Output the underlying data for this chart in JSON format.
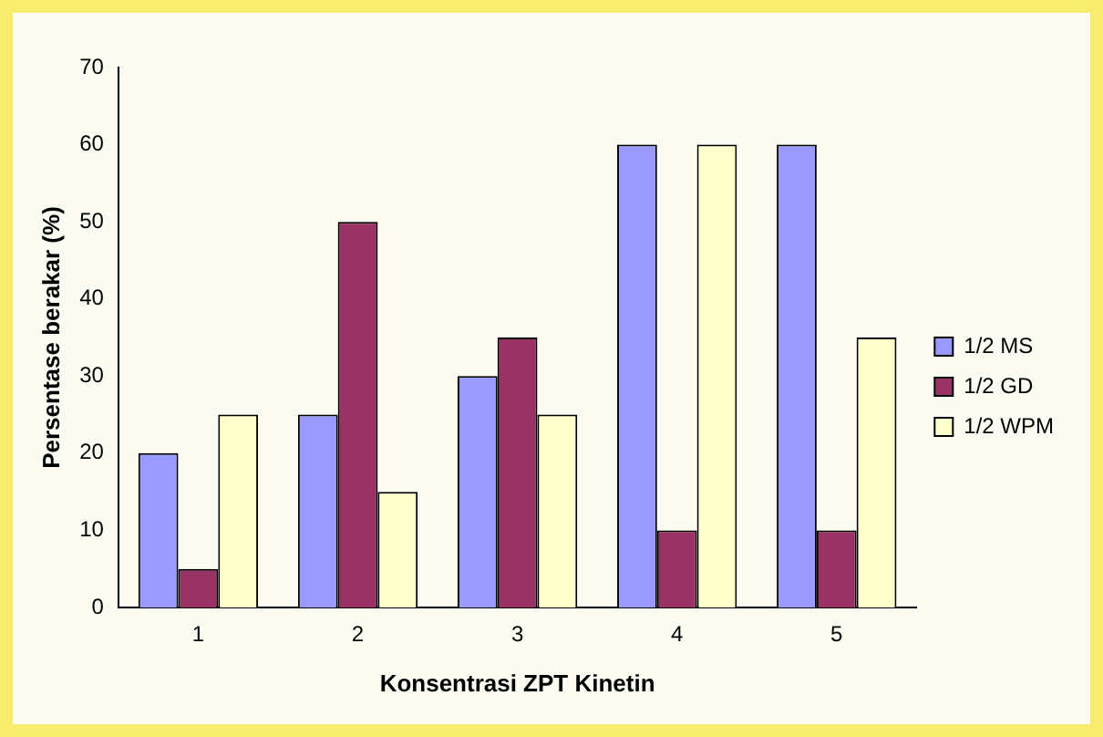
{
  "chart_data": {
    "type": "bar",
    "xlabel": "Konsentrasi ZPT Kinetin",
    "ylabel": "Persentase berakar (%)",
    "categories": [
      "1",
      "2",
      "3",
      "4",
      "5"
    ],
    "series": [
      {
        "name": "1/2 MS",
        "color": "#9999ff",
        "values": [
          20,
          25,
          30,
          60,
          60
        ]
      },
      {
        "name": "1/2 GD",
        "color": "#993366",
        "values": [
          5,
          50,
          35,
          10,
          10
        ]
      },
      {
        "name": "1/2 WPM",
        "color": "#ffffcc",
        "values": [
          25,
          15,
          25,
          60,
          35
        ]
      }
    ],
    "ylim": [
      0,
      70
    ],
    "yticks": [
      0,
      10,
      20,
      30,
      40,
      50,
      60,
      70
    ],
    "grid": false,
    "legend": "right"
  }
}
